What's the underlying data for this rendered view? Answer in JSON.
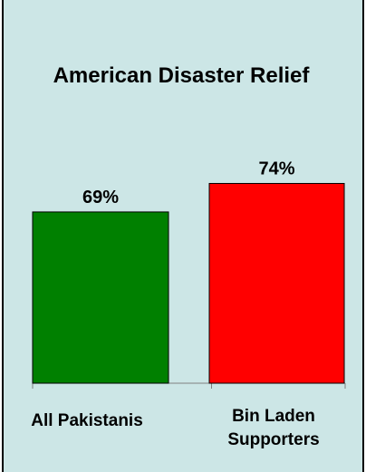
{
  "chart_data": {
    "type": "bar",
    "title": "American Disaster Relief",
    "categories": [
      "All Pakistanis",
      "Bin Laden Supporters"
    ],
    "category_label_lines": [
      [
        "All Pakistanis"
      ],
      [
        "Bin Laden",
        "Supporters"
      ]
    ],
    "values": [
      69,
      74
    ],
    "data_labels": [
      "69%",
      "74%"
    ],
    "bar_colors": [
      "#008000",
      "#ff0000"
    ],
    "unit": "%",
    "ylim": [
      0,
      100
    ],
    "grid": false,
    "legend": "none"
  },
  "colors": {
    "background": "#cce6e6",
    "border": "#000000",
    "axis": "#808080"
  }
}
